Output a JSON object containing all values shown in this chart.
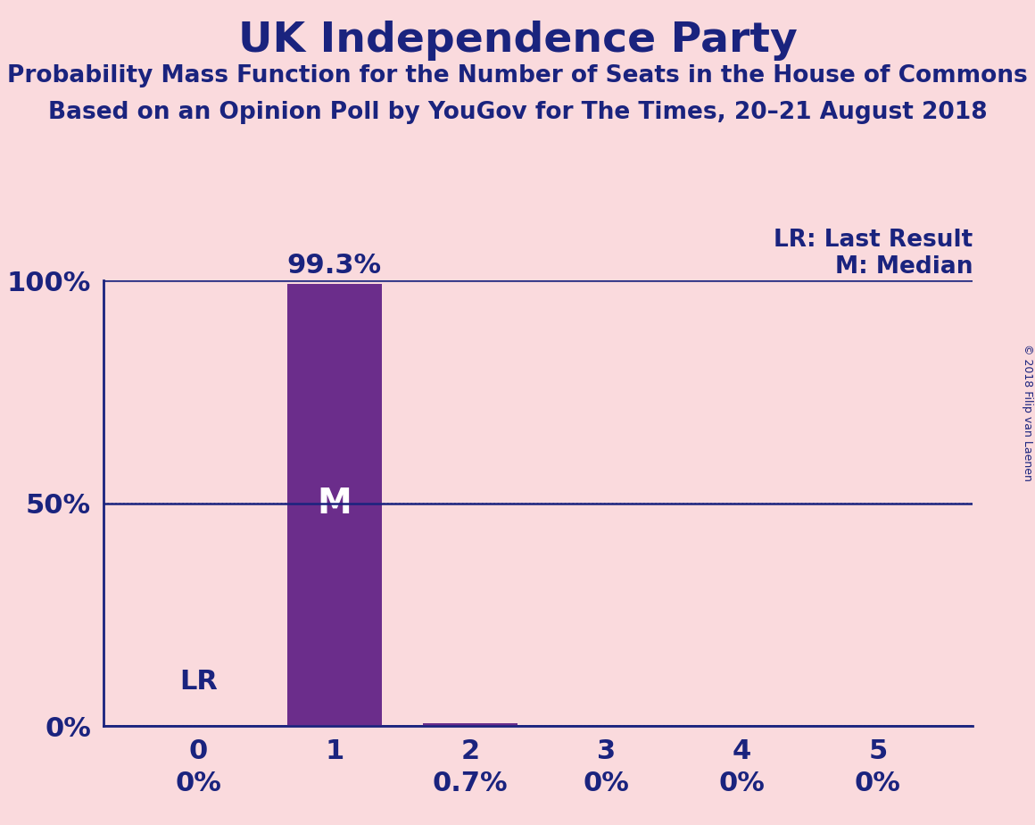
{
  "title": "UK Independence Party",
  "subtitle1": "Probability Mass Function for the Number of Seats in the House of Commons",
  "subtitle2": "Based on an Opinion Poll by YouGov for The Times, 20–21 August 2018",
  "copyright": "© 2018 Filip van Laenen",
  "categories": [
    0,
    1,
    2,
    3,
    4,
    5
  ],
  "values": [
    0.0,
    0.993,
    0.007,
    0.0,
    0.0,
    0.0
  ],
  "bar_color": "#6B2D8B",
  "background_color": "#FADADD",
  "text_color": "#1a237e",
  "axis_color": "#1a237e",
  "grid_color": "#1a237e",
  "median_seat": 1,
  "last_result_seat": 0,
  "label_values": [
    "0%",
    "99.3%",
    "0.7%",
    "0%",
    "0%",
    "0%"
  ],
  "ylim": [
    0,
    1.0
  ],
  "yticks": [
    0.0,
    0.5,
    1.0
  ],
  "ytick_labels": [
    "0%",
    "50%",
    "100%"
  ],
  "legend_lr": "LR: Last Result",
  "legend_m": "M: Median",
  "title_fontsize": 34,
  "subtitle_fontsize": 19,
  "tick_fontsize": 22,
  "label_fontsize": 22,
  "legend_fontsize": 19,
  "copyright_fontsize": 9
}
